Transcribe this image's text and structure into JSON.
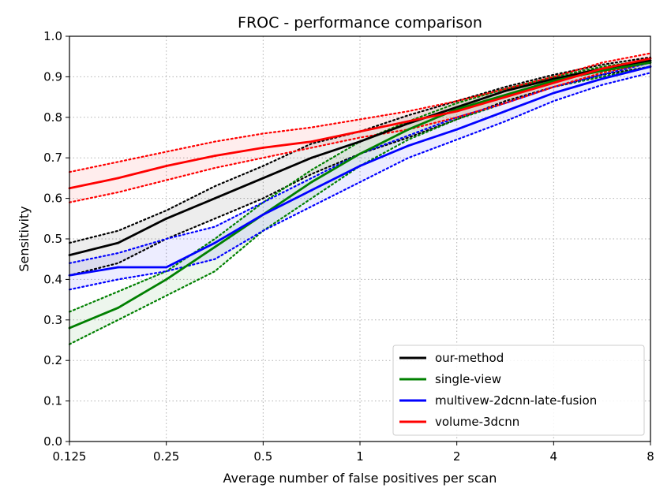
{
  "chart_data": {
    "type": "line",
    "title": "FROC - performance comparison",
    "xlabel": "Average number of false positives per scan",
    "ylabel": "Sensitivity",
    "x_scale": "log2",
    "xlim": [
      0.125,
      8
    ],
    "ylim": [
      0,
      1
    ],
    "x_ticks": [
      0.125,
      0.25,
      0.5,
      1,
      2,
      4,
      8
    ],
    "x_tick_labels": [
      "0.125",
      "0.25",
      "0.5",
      "1",
      "2",
      "4",
      "8"
    ],
    "y_ticks": [
      0,
      0.1,
      0.2,
      0.3,
      0.4,
      0.5,
      0.6,
      0.7,
      0.8,
      0.9,
      1.0
    ],
    "y_tick_labels": [
      "0.0",
      "0.1",
      "0.2",
      "0.3",
      "0.4",
      "0.5",
      "0.6",
      "0.7",
      "0.8",
      "0.9",
      "1.0"
    ],
    "grid": true,
    "legend_position": "bottom-right",
    "x": [
      0.125,
      0.177,
      0.25,
      0.354,
      0.5,
      0.707,
      1,
      1.414,
      2,
      2.828,
      4,
      5.657,
      8
    ],
    "series": [
      {
        "name": "our-method",
        "color": "#000000",
        "values": [
          0.46,
          0.49,
          0.55,
          0.6,
          0.65,
          0.7,
          0.74,
          0.785,
          0.825,
          0.865,
          0.895,
          0.92,
          0.94
        ],
        "lower": [
          0.41,
          0.44,
          0.5,
          0.55,
          0.6,
          0.66,
          0.71,
          0.75,
          0.795,
          0.84,
          0.875,
          0.905,
          0.925
        ],
        "upper": [
          0.49,
          0.52,
          0.57,
          0.63,
          0.68,
          0.735,
          0.765,
          0.805,
          0.84,
          0.875,
          0.905,
          0.93,
          0.948
        ]
      },
      {
        "name": "single-view",
        "color": "#008000",
        "values": [
          0.28,
          0.33,
          0.4,
          0.48,
          0.56,
          0.64,
          0.71,
          0.77,
          0.82,
          0.855,
          0.89,
          0.915,
          0.935
        ],
        "lower": [
          0.24,
          0.3,
          0.36,
          0.42,
          0.52,
          0.6,
          0.68,
          0.745,
          0.795,
          0.835,
          0.875,
          0.9,
          0.925
        ],
        "upper": [
          0.32,
          0.37,
          0.42,
          0.5,
          0.59,
          0.67,
          0.74,
          0.79,
          0.835,
          0.87,
          0.9,
          0.925,
          0.942
        ]
      },
      {
        "name": "multivew-2dcnn-late-fusion",
        "color": "#0000ff",
        "values": [
          0.41,
          0.43,
          0.43,
          0.49,
          0.56,
          0.62,
          0.68,
          0.73,
          0.77,
          0.815,
          0.86,
          0.895,
          0.925
        ],
        "lower": [
          0.375,
          0.4,
          0.42,
          0.45,
          0.52,
          0.58,
          0.64,
          0.7,
          0.745,
          0.79,
          0.84,
          0.88,
          0.91
        ],
        "upper": [
          0.44,
          0.465,
          0.5,
          0.53,
          0.59,
          0.65,
          0.71,
          0.755,
          0.8,
          0.835,
          0.875,
          0.905,
          0.935
        ]
      },
      {
        "name": "volume-3dcnn",
        "color": "#ff0000",
        "values": [
          0.625,
          0.65,
          0.68,
          0.705,
          0.725,
          0.74,
          0.765,
          0.79,
          0.815,
          0.85,
          0.885,
          0.92,
          0.945
        ],
        "lower": [
          0.59,
          0.615,
          0.645,
          0.675,
          0.7,
          0.725,
          0.75,
          0.77,
          0.8,
          0.835,
          0.875,
          0.91,
          0.935
        ],
        "upper": [
          0.665,
          0.69,
          0.715,
          0.74,
          0.76,
          0.775,
          0.795,
          0.815,
          0.84,
          0.87,
          0.9,
          0.935,
          0.958
        ]
      }
    ]
  }
}
